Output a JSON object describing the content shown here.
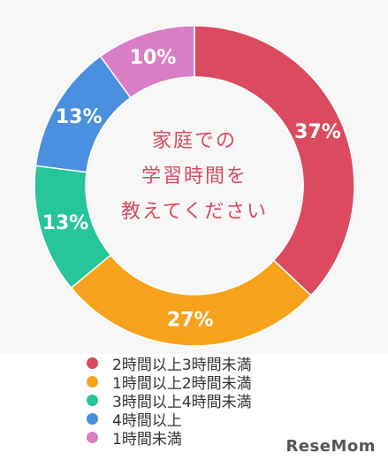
{
  "chart_data": {
    "type": "pie",
    "style": "donut",
    "title": "家庭での\n学習時間を\n教えてください",
    "title_lines": [
      "家庭での",
      "学習時間を",
      "教えてください"
    ],
    "categories": [
      "2時間以上3時間未満",
      "1時間以上2時間未満",
      "3時間以上4時間未満",
      "4時間以上",
      "1時間未満"
    ],
    "values": [
      37,
      27,
      13,
      13,
      10
    ],
    "value_labels": [
      "37%",
      "27%",
      "13%",
      "13%",
      "10%"
    ],
    "colors": [
      "#db4a5e",
      "#f7a21b",
      "#26c59a",
      "#4a8fe0",
      "#d97ec4"
    ],
    "legend": {
      "position": "bottom",
      "items": [
        {
          "label": "2時間以上3時間未満",
          "color": "#db4a5e"
        },
        {
          "label": "1時間以上2時間未満",
          "color": "#f7a21b"
        },
        {
          "label": "3時間以上4時間未満",
          "color": "#26c59a"
        },
        {
          "label": "4時間以上",
          "color": "#4a8fe0"
        },
        {
          "label": "1時間未満",
          "color": "#d97ec4"
        }
      ]
    }
  },
  "watermark": "ReseMom"
}
